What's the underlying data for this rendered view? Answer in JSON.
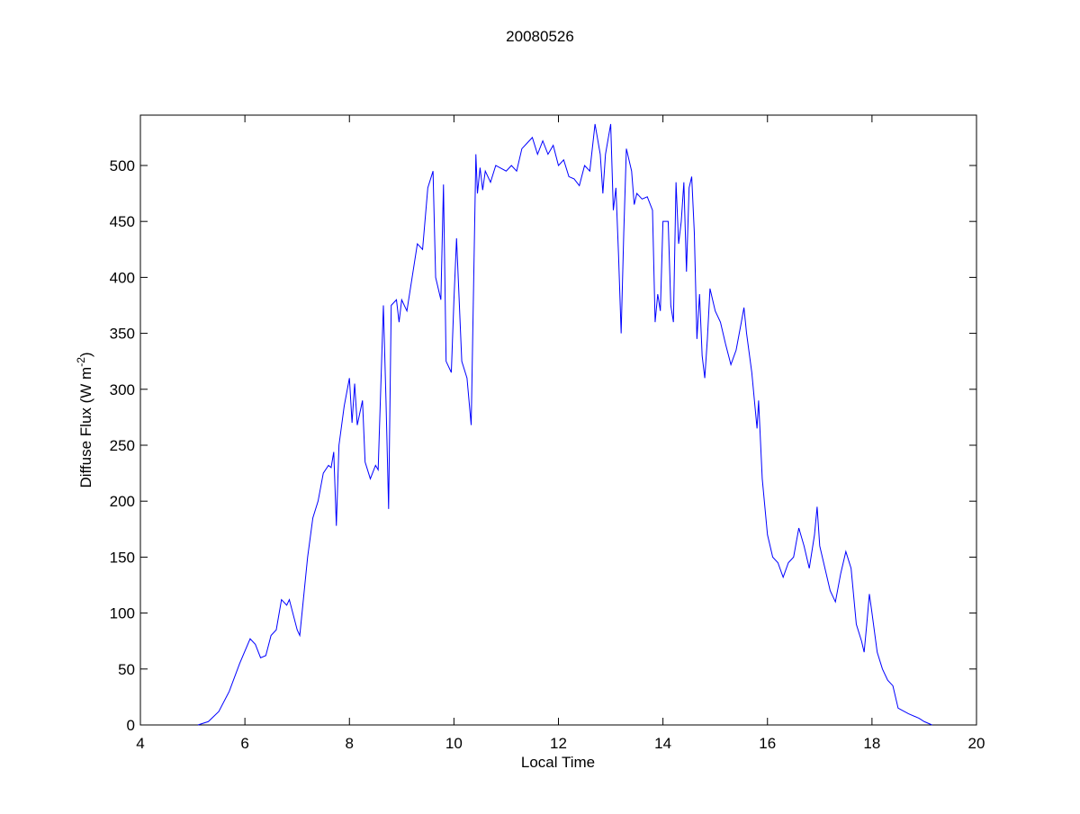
{
  "chart_data": {
    "type": "line",
    "title": "20080526",
    "xlabel": "Local Time",
    "ylabel": [
      "Diffuse Flux (W m",
      "-2",
      ")"
    ],
    "color": "#0000ff",
    "xlim": [
      4,
      20
    ],
    "xticks": [
      4,
      6,
      8,
      10,
      12,
      14,
      16,
      18,
      20
    ],
    "ylim": [
      0,
      545
    ],
    "yticks": [
      0,
      50,
      100,
      150,
      200,
      250,
      300,
      350,
      400,
      450,
      500
    ],
    "grid": false,
    "x": [
      5.1,
      5.3,
      5.5,
      5.7,
      5.9,
      6.1,
      6.2,
      6.3,
      6.4,
      6.5,
      6.6,
      6.7,
      6.8,
      6.85,
      7.0,
      7.05,
      7.2,
      7.3,
      7.4,
      7.5,
      7.6,
      7.65,
      7.7,
      7.75,
      7.8,
      7.9,
      8.0,
      8.05,
      8.1,
      8.15,
      8.25,
      8.3,
      8.4,
      8.5,
      8.55,
      8.65,
      8.7,
      8.75,
      8.8,
      8.9,
      8.95,
      9.0,
      9.1,
      9.15,
      9.3,
      9.4,
      9.5,
      9.6,
      9.65,
      9.75,
      9.8,
      9.85,
      9.95,
      10.0,
      10.05,
      10.15,
      10.25,
      10.33,
      10.42,
      10.45,
      10.5,
      10.55,
      10.6,
      10.7,
      10.8,
      11.0,
      11.1,
      11.2,
      11.3,
      11.4,
      11.5,
      11.6,
      11.7,
      11.8,
      11.9,
      12.0,
      12.1,
      12.2,
      12.3,
      12.4,
      12.5,
      12.6,
      12.7,
      12.8,
      12.85,
      12.9,
      13.0,
      13.05,
      13.1,
      13.15,
      13.2,
      13.25,
      13.3,
      13.4,
      13.45,
      13.5,
      13.6,
      13.7,
      13.8,
      13.85,
      13.9,
      13.95,
      14.0,
      14.1,
      14.15,
      14.2,
      14.25,
      14.3,
      14.35,
      14.4,
      14.45,
      14.5,
      14.55,
      14.6,
      14.65,
      14.7,
      14.75,
      14.8,
      14.85,
      14.9,
      15.0,
      15.1,
      15.2,
      15.3,
      15.4,
      15.5,
      15.55,
      15.6,
      15.7,
      15.8,
      15.83,
      15.9,
      16.0,
      16.1,
      16.2,
      16.3,
      16.4,
      16.5,
      16.6,
      16.7,
      16.8,
      16.9,
      16.95,
      17.0,
      17.1,
      17.2,
      17.3,
      17.4,
      17.5,
      17.6,
      17.7,
      17.8,
      17.85,
      17.9,
      17.95,
      18.0,
      18.1,
      18.2,
      18.3,
      18.4,
      18.5,
      18.7,
      18.9,
      19.0,
      19.15
    ],
    "values": [
      0,
      3,
      12,
      30,
      55,
      77,
      72,
      60,
      62,
      80,
      85,
      112,
      107,
      112,
      85,
      80,
      150,
      185,
      200,
      225,
      232,
      230,
      244,
      178,
      250,
      285,
      310,
      270,
      305,
      268,
      290,
      235,
      220,
      232,
      228,
      375,
      290,
      193,
      375,
      380,
      360,
      380,
      370,
      385,
      430,
      425,
      480,
      495,
      400,
      380,
      483,
      325,
      315,
      380,
      435,
      325,
      310,
      268,
      510,
      475,
      498,
      478,
      495,
      485,
      500,
      495,
      500,
      495,
      515,
      520,
      525,
      510,
      522,
      510,
      518,
      500,
      505,
      490,
      488,
      482,
      500,
      495,
      537,
      510,
      475,
      510,
      537,
      460,
      480,
      420,
      350,
      440,
      515,
      495,
      465,
      475,
      470,
      472,
      460,
      360,
      385,
      370,
      450,
      450,
      375,
      360,
      485,
      430,
      450,
      485,
      405,
      480,
      490,
      440,
      345,
      385,
      330,
      310,
      345,
      390,
      370,
      360,
      340,
      322,
      335,
      360,
      373,
      350,
      315,
      265,
      290,
      220,
      170,
      150,
      145,
      132,
      145,
      150,
      176,
      160,
      140,
      170,
      195,
      160,
      140,
      120,
      110,
      135,
      155,
      140,
      90,
      75,
      65,
      90,
      117,
      100,
      65,
      50,
      40,
      35,
      15,
      10,
      6,
      3,
      0
    ]
  }
}
